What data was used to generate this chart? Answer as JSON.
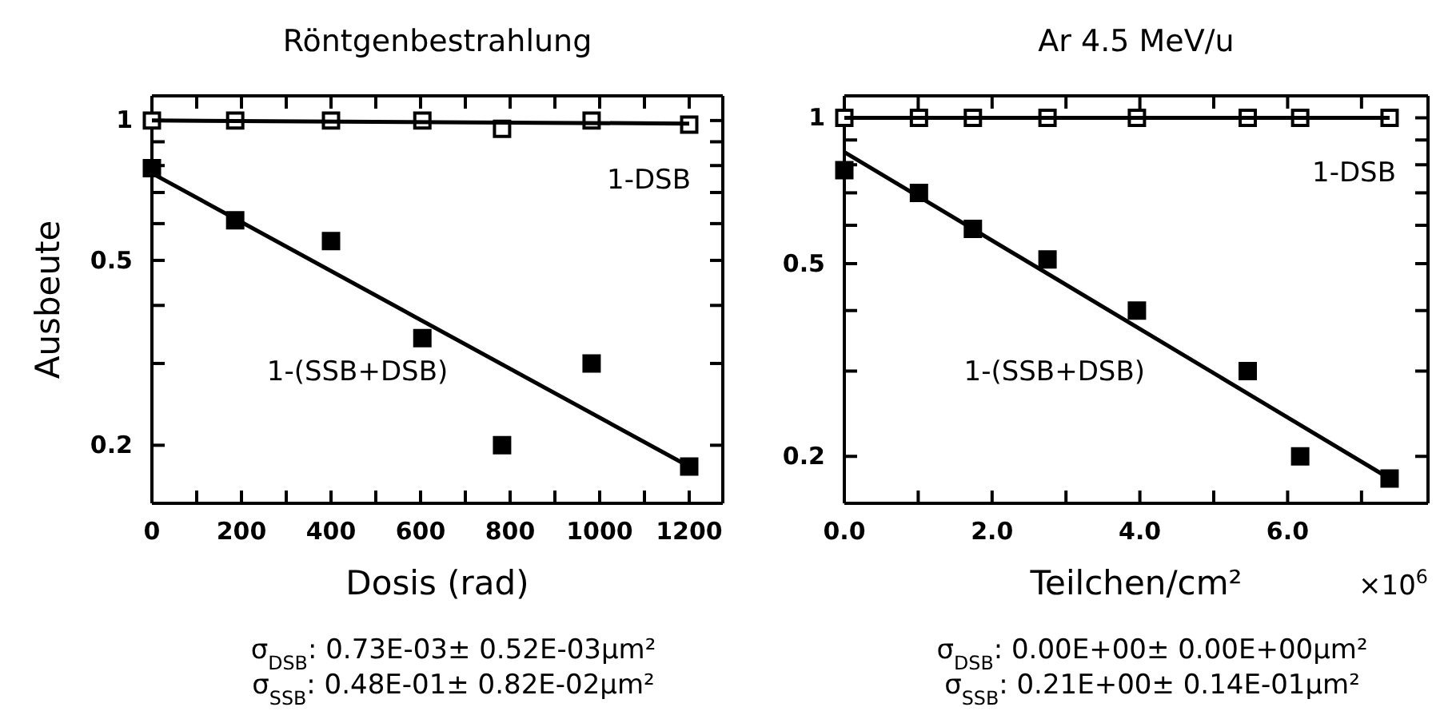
{
  "chart_data": [
    {
      "type": "scatter",
      "title": "Röntgenbestrahlung",
      "xlabel": "Dosis (rad)",
      "ylabel": "Ausbeute",
      "log": "y",
      "xlim": [
        0,
        1275
      ],
      "ylim": [
        0.15,
        1.13
      ],
      "xticks": [
        0,
        {
          "value": 100,
          "label": null
        },
        200,
        {
          "value": 300,
          "label": null
        },
        400,
        {
          "value": 500,
          "label": null
        },
        600,
        {
          "value": 700,
          "label": null
        },
        800,
        {
          "value": 900,
          "label": null
        },
        1000,
        {
          "value": 1100,
          "label": null
        },
        1200
      ],
      "yticks": [
        {
          "value": 0.2,
          "label": "0.2"
        },
        {
          "value": 0.3,
          "label": null
        },
        {
          "value": 0.4,
          "label": null
        },
        {
          "value": 0.5,
          "label": "0.5"
        },
        {
          "value": 0.6,
          "label": null
        },
        {
          "value": 0.7,
          "label": null
        },
        {
          "value": 0.8,
          "label": null
        },
        {
          "value": 0.9,
          "label": null
        },
        {
          "value": 1,
          "label": "1"
        }
      ],
      "grid": false,
      "legend": "top right",
      "series": [
        {
          "name": "1-DSB",
          "marker": "square",
          "color": "#000000",
          "x": [
            0,
            186,
            400,
            604,
            782,
            982,
            1200
          ],
          "values": [
            1,
            1,
            1,
            1,
            0.96,
            1,
            0.98
          ]
        },
        {
          "name": "1-(SSB+DSB)",
          "marker": "square",
          "color": "#000000",
          "x": [
            0,
            186,
            400,
            604,
            782,
            982,
            1200
          ],
          "values": [
            0.79,
            0.61,
            0.55,
            0.34,
            0.2,
            0.3,
            0.18
          ]
        },
        {
          "type": "line",
          "color": "#000000",
          "line_style": "solid",
          "x": [
            0,
            1200
          ],
          "values": [
            1,
            0.985
          ]
        },
        {
          "type": "line",
          "color": "#000000",
          "line_style": "solid",
          "x": [
            0,
            1200
          ],
          "values": [
            0.77,
            0.18
          ]
        }
      ],
      "annotations": [
        "σ$_{DSB}$: 0.73E-03± 0.52E-03μm²",
        "σ$_{SSB}$: 0.48E-01± 0.82E-02μm²"
      ]
    },
    {
      "type": "scatter",
      "title": "Ar 4.5 MeV/u",
      "xlabel": "Teilchen/cm²",
      "log": "y",
      "xlim": [
        0,
        7.9
      ],
      "ylim": [
        0.16,
        1.11
      ],
      "xticks": [
        {
          "value": 0,
          "label": "0.0"
        },
        {
          "value": 1,
          "label": null
        },
        {
          "value": 2,
          "label": "2.0"
        },
        {
          "value": 3,
          "label": null
        },
        {
          "value": 4,
          "label": "4.0"
        },
        {
          "value": 5,
          "label": null
        },
        {
          "value": 6,
          "label": "6.0"
        },
        {
          "value": 7,
          "label": null
        }
      ],
      "yticks": [
        {
          "value": 0.2,
          "label": "0.2"
        },
        {
          "value": 0.3,
          "label": null
        },
        {
          "value": 0.4,
          "label": null
        },
        {
          "value": 0.5,
          "label": "0.5"
        },
        {
          "value": 0.6,
          "label": null
        },
        {
          "value": 0.7,
          "label": null
        },
        {
          "value": 0.8,
          "label": null
        },
        {
          "value": 0.9,
          "label": null
        },
        {
          "value": 1,
          "label": "1"
        }
      ],
      "grid": false,
      "legend": "top right",
      "series": [
        {
          "name": "1-DSB",
          "marker": "square",
          "color": "#000000",
          "x": [
            0,
            1.01,
            1.74,
            2.75,
            3.96,
            5.46,
            6.17,
            7.38
          ],
          "values": [
            1,
            1,
            1,
            1,
            1,
            1,
            1,
            1
          ]
        },
        {
          "name": "1-(SSB+DSB)",
          "marker": "square",
          "color": "#000000",
          "x": [
            0,
            1.01,
            1.74,
            2.75,
            3.96,
            5.46,
            6.17,
            7.38
          ],
          "values": [
            0.78,
            0.7,
            0.59,
            0.51,
            0.4,
            0.3,
            0.2,
            0.18
          ]
        },
        {
          "type": "line",
          "color": "#000000",
          "line_style": "solid",
          "x": [
            0,
            7.38
          ],
          "values": [
            1,
            1
          ]
        },
        {
          "type": "line",
          "color": "#000000",
          "line_style": "solid",
          "x": [
            0,
            7.38
          ],
          "values": [
            0.85,
            0.18
          ]
        }
      ],
      "annotations": [
        "×10$^{6}$",
        "σ$_{DSB}$: 0.00E+00± 0.00E+00μm²",
        "σ$_{SSB}$: 0.21E+00± 0.14E-01μm²"
      ]
    }
  ]
}
